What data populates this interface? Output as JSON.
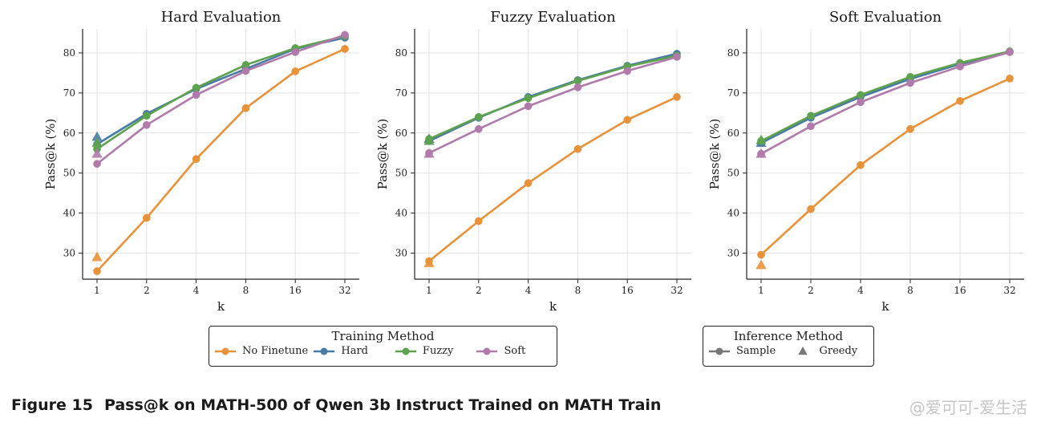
{
  "figure": {
    "number": "Figure 15",
    "title": "Pass@k on MATH-500 of Qwen 3b Instruct Trained on MATH Train"
  },
  "watermark": "@爱可可-爱生活",
  "legends": {
    "training": {
      "title": "Training Method",
      "items": [
        {
          "label": "No Finetune",
          "color": "#e8923a"
        },
        {
          "label": "Hard",
          "color": "#4a7ba6"
        },
        {
          "label": "Fuzzy",
          "color": "#5da24f"
        },
        {
          "label": "Soft",
          "color": "#b07aaa"
        }
      ]
    },
    "inference": {
      "title": "Inference Method",
      "items": [
        {
          "label": "Sample",
          "marker": "circle",
          "color": "#777777"
        },
        {
          "label": "Greedy",
          "marker": "triangle",
          "color": "#777777"
        }
      ]
    }
  },
  "chart_data": [
    {
      "type": "line",
      "title": "Hard Evaluation",
      "xlabel": "k",
      "ylabel": "Pass@k (%)",
      "x": [
        "1",
        "2",
        "4",
        "8",
        "16",
        "32"
      ],
      "yticks": [
        30,
        40,
        50,
        60,
        70,
        80
      ],
      "ylim": [
        23.5,
        86
      ],
      "grid": true,
      "series": [
        {
          "name": "No Finetune",
          "color": "#e8923a",
          "values": [
            25.5,
            38.8,
            53.5,
            66.2,
            75.4,
            81.0
          ],
          "greedy": 29.0
        },
        {
          "name": "Hard",
          "color": "#4a7ba6",
          "values": [
            57.2,
            64.8,
            71.0,
            76.0,
            81.0,
            83.8
          ],
          "greedy": 59.0
        },
        {
          "name": "Fuzzy",
          "color": "#5da24f",
          "values": [
            56.0,
            64.3,
            71.3,
            77.0,
            81.2,
            84.2
          ],
          "greedy": 57.5
        },
        {
          "name": "Soft",
          "color": "#b07aaa",
          "values": [
            52.3,
            62.0,
            69.5,
            75.5,
            80.2,
            84.5
          ],
          "greedy": 54.8
        }
      ]
    },
    {
      "type": "line",
      "title": "Fuzzy Evaluation",
      "xlabel": "k",
      "ylabel": "Pass@k (%)",
      "x": [
        "1",
        "2",
        "4",
        "8",
        "16",
        "32"
      ],
      "yticks": [
        30,
        40,
        50,
        60,
        70,
        80
      ],
      "ylim": [
        23.5,
        86
      ],
      "grid": true,
      "series": [
        {
          "name": "No Finetune",
          "color": "#e8923a",
          "values": [
            28.0,
            38.0,
            47.5,
            56.0,
            63.3,
            69.0
          ],
          "greedy": 27.5
        },
        {
          "name": "Hard",
          "color": "#4a7ba6",
          "values": [
            58.0,
            63.8,
            69.0,
            73.2,
            76.8,
            79.8
          ],
          "greedy": 58.5
        },
        {
          "name": "Fuzzy",
          "color": "#5da24f",
          "values": [
            58.5,
            64.0,
            68.7,
            73.0,
            76.6,
            79.3
          ],
          "greedy": 58.0
        },
        {
          "name": "Soft",
          "color": "#b07aaa",
          "values": [
            55.0,
            61.0,
            66.7,
            71.4,
            75.5,
            79.0
          ],
          "greedy": 54.8
        }
      ]
    },
    {
      "type": "line",
      "title": "Soft Evaluation",
      "xlabel": "k",
      "ylabel": "Pass@k (%)",
      "x": [
        "1",
        "2",
        "4",
        "8",
        "16",
        "32"
      ],
      "yticks": [
        30,
        40,
        50,
        60,
        70,
        80
      ],
      "ylim": [
        23.5,
        86
      ],
      "grid": true,
      "series": [
        {
          "name": "No Finetune",
          "color": "#e8923a",
          "values": [
            29.6,
            41.0,
            52.0,
            61.0,
            68.0,
            73.6
          ],
          "greedy": 27.0
        },
        {
          "name": "Hard",
          "color": "#4a7ba6",
          "values": [
            57.5,
            63.8,
            69.0,
            73.5,
            77.2,
            80.3
          ],
          "greedy": 57.5
        },
        {
          "name": "Fuzzy",
          "color": "#5da24f",
          "values": [
            58.0,
            64.3,
            69.5,
            74.0,
            77.5,
            80.4
          ],
          "greedy": 58.2
        },
        {
          "name": "Soft",
          "color": "#b07aaa",
          "values": [
            54.8,
            61.7,
            67.7,
            72.5,
            76.6,
            80.2
          ],
          "greedy": 54.8
        }
      ]
    }
  ]
}
